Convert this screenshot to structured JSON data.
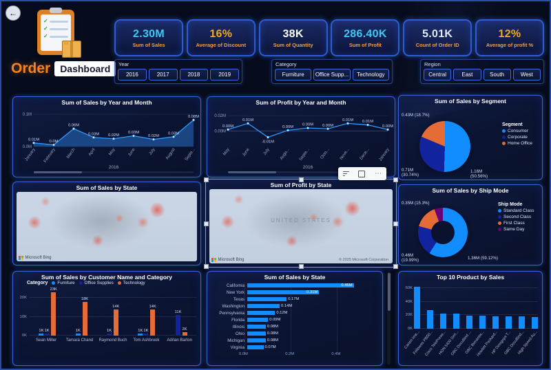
{
  "icons": {
    "back": "←",
    "more": "⋯"
  },
  "header": {
    "title_primary": "Order",
    "title_secondary": "Dashboard"
  },
  "kpis": [
    {
      "value": "2.30M",
      "label": "Sum of Sales",
      "value_color": "#3ec9f2"
    },
    {
      "value": "16%",
      "label": "Average of Discount",
      "value_color": "#f5a623"
    },
    {
      "value": "38K",
      "label": "Sum of Quantity",
      "value_color": "#ffffff"
    },
    {
      "value": "286.40K",
      "label": "Sum of Profit",
      "value_color": "#3ec9f2"
    },
    {
      "value": "5.01K",
      "label": "Count of Order ID",
      "value_color": "#e8edff"
    },
    {
      "value": "12%",
      "label": "Average of profit %",
      "value_color": "#f5a623"
    }
  ],
  "slicers": [
    {
      "title": "Year",
      "options": [
        "2016",
        "2017",
        "2018",
        "2019"
      ]
    },
    {
      "title": "Category",
      "options": [
        "Furniture",
        "Office Supp...",
        "Technology"
      ]
    },
    {
      "title": "Region",
      "options": [
        "Central",
        "East",
        "South",
        "West"
      ]
    }
  ],
  "chart_data": [
    {
      "id": "sales-by-month",
      "type": "area",
      "title": "Sum of Sales by Year and Month",
      "x": [
        "January",
        "February",
        "March",
        "April",
        "May",
        "June",
        "July",
        "August",
        "Septe..."
      ],
      "values": [
        0.011,
        0.005,
        0.055,
        0.028,
        0.024,
        0.033,
        0.022,
        0.03,
        0.082
      ],
      "point_labels": [
        "0.01M",
        "0.0M",
        "0.06M",
        "0.03M",
        "0.02M",
        "0.03M",
        "0.02M",
        "0.03M",
        "0.08M"
      ],
      "ylim": [
        0,
        0.1
      ],
      "yticks": [
        {
          "label": "0.1M",
          "v": 0.1
        },
        {
          "label": "0.0M",
          "v": 0
        }
      ],
      "axis_title": "2016",
      "line_color": "#2f9bff"
    },
    {
      "id": "profit-by-month",
      "type": "line",
      "title": "Sum of Profit by Year and Month",
      "x": [
        "May",
        "June",
        "July",
        "Augu...",
        "Septe...",
        "Octo...",
        "Nove...",
        "Dece...",
        "January"
      ],
      "values": [
        0.002,
        0.01,
        -0.008,
        0.001,
        0.004,
        0.003,
        0.01,
        0.008,
        0.002
      ],
      "point_labels": [
        "0.00M",
        "0.01M",
        "-0.01M",
        "0.00M",
        "0.00M",
        "0.00M",
        "0.01M",
        "0.01M",
        "0.00M"
      ],
      "ylim": [
        -0.02,
        0.022
      ],
      "yticks": [
        {
          "label": "0.02M",
          "v": 0.02
        },
        {
          "label": "0.00M",
          "v": 0
        }
      ],
      "axis_title": "2016",
      "line_color": "#2f9bff"
    },
    {
      "id": "sales-by-segment",
      "type": "pie",
      "title": "Sum of Sales by Segment",
      "legend_title": "Segment",
      "slices": [
        {
          "name": "Consumer",
          "label": "1.16M (50.56%)",
          "pct": 50.56,
          "color": "#118DFF"
        },
        {
          "name": "Corporate",
          "label": "0.71M (30.74%)",
          "pct": 30.74,
          "color": "#12239E"
        },
        {
          "name": "Home Office",
          "label": "0.43M (18.7%)",
          "pct": 18.7,
          "color": "#E66C37"
        }
      ]
    },
    {
      "id": "sales-by-state-map",
      "type": "map",
      "title": "Sum of Sales by State",
      "attribution": "Microsoft Bing"
    },
    {
      "id": "profit-by-state-map",
      "type": "map",
      "title": "Sum of Profit by State",
      "map_label": "UNITED STATES",
      "attribution": "Microsoft Bing",
      "copyright": "© 2025 Microsoft Corporation"
    },
    {
      "id": "sales-by-ship-mode",
      "type": "donut",
      "title": "Sum of Sales by Ship Mode",
      "legend_title": "Ship Mode",
      "slices": [
        {
          "name": "Standard Class",
          "label": "1.36M (59.12%)",
          "pct": 59.12,
          "color": "#118DFF"
        },
        {
          "name": "Second Class",
          "label": "0.46M (19.99%)",
          "pct": 19.99,
          "color": "#12239E"
        },
        {
          "name": "First Class",
          "label": "0.35M (15.3%)",
          "pct": 15.3,
          "color": "#E66C37"
        },
        {
          "name": "Same Day",
          "label": "",
          "pct": 5.59,
          "color": "#6B007B"
        }
      ]
    },
    {
      "id": "sales-by-customer-category",
      "type": "bar",
      "title": "Sum of Sales by Customer Name and Category",
      "legend_title": "Category",
      "legend": [
        "Furniture",
        "Office Supplies",
        "Technology"
      ],
      "series_colors": {
        "Furniture": "#118DFF",
        "Office Supplies": "#12239E",
        "Technology": "#E66C37"
      },
      "yticks": [
        {
          "label": "0K",
          "v": 0
        },
        {
          "label": "10K",
          "v": 10
        },
        {
          "label": "20K",
          "v": 20
        }
      ],
      "ymax": 24,
      "groups": [
        {
          "name": "Sean Miller",
          "bars": [
            {
              "series": "Furniture",
              "value": 1,
              "label": "1K"
            },
            {
              "series": "Office Supplies",
              "value": 1,
              "label": "1K"
            },
            {
              "series": "Technology",
              "value": 23,
              "label": "23K"
            }
          ]
        },
        {
          "name": "Tamara Chand",
          "bars": [
            {
              "series": "Furniture",
              "value": 1,
              "label": "1K"
            },
            {
              "series": "Technology",
              "value": 18,
              "label": "18K"
            }
          ]
        },
        {
          "name": "Raymond Buch",
          "bars": [
            {
              "series": "Office Supplies",
              "value": 1,
              "label": "1K"
            },
            {
              "series": "Technology",
              "value": 14,
              "label": "14K"
            }
          ]
        },
        {
          "name": "Tom Ashbrook",
          "bars": [
            {
              "series": "Furniture",
              "value": 1,
              "label": "1K"
            },
            {
              "series": "Office Supplies",
              "value": 1,
              "label": "1K"
            },
            {
              "series": "Technology",
              "value": 14,
              "label": "14K"
            }
          ]
        },
        {
          "name": "Adrian Barton",
          "bars": [
            {
              "series": "Office Supplies",
              "value": 11,
              "label": "11K"
            },
            {
              "series": "Technology",
              "value": 2,
              "label": "2K"
            }
          ]
        }
      ]
    },
    {
      "id": "sales-by-state-hbar",
      "type": "hbar",
      "title": "Sum of Sales by State",
      "categories": [
        "California",
        "New York",
        "Texas",
        "Washington",
        "Pennsylvania",
        "Florida",
        "Illinois",
        "Ohio",
        "Michigan",
        "Virginia"
      ],
      "values": [
        0.46,
        0.31,
        0.17,
        0.14,
        0.12,
        0.09,
        0.08,
        0.08,
        0.08,
        0.07
      ],
      "bar_labels": [
        "0.46M",
        "0.31M",
        "0.17M",
        "0.14M",
        "0.12M",
        "0.09M",
        "0.08M",
        "0.08M",
        "0.08M",
        "0.07M"
      ],
      "xticks": [
        {
          "label": "0.0M",
          "v": 0
        },
        {
          "label": "0.2M",
          "v": 0.2
        },
        {
          "label": "0.4M",
          "v": 0.4
        }
      ],
      "xmax": 0.5,
      "bar_color": "#118DFF"
    },
    {
      "id": "top-10-products",
      "type": "bar",
      "title": "Top 10 Product by Sales",
      "categories": [
        "Canon ima...",
        "Fellowes PB50...",
        "Cisco TelePrese...",
        "HON 5400 Seri...",
        "GBC DocuBind ...",
        "GBC Ibimaster...",
        "Hewlett Packard...",
        "HP Designjet T...",
        "GBC DocuBind...",
        "High Speed Au..."
      ],
      "values": [
        61.6,
        27.4,
        22.6,
        21.9,
        19.8,
        19,
        18.8,
        18.4,
        17.9,
        17
      ],
      "yticks": [
        {
          "label": "0K",
          "v": 0
        },
        {
          "label": "20K",
          "v": 20
        },
        {
          "label": "40K",
          "v": 40
        },
        {
          "label": "60K",
          "v": 60
        }
      ],
      "ymax": 65,
      "bar_color": "#118DFF"
    }
  ]
}
